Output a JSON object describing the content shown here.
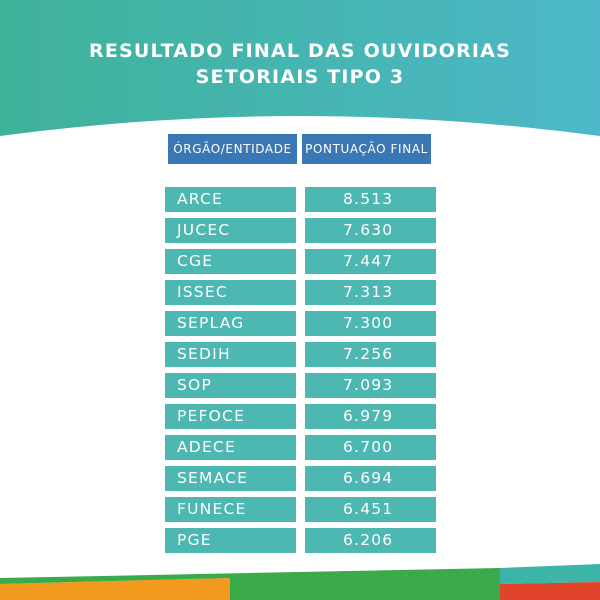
{
  "title": {
    "line1": "RESULTADO FINAL DAS OUVIDORIAS",
    "line2": "SETORIAIS  TIPO 3"
  },
  "table": {
    "headers": [
      "ÓRGÃO/ENTIDADE",
      "PONTUAÇÃO FINAL"
    ],
    "rows": [
      {
        "entity": "ARCE",
        "score": "8.513"
      },
      {
        "entity": "JUCEC",
        "score": "7.630"
      },
      {
        "entity": "CGE",
        "score": "7.447"
      },
      {
        "entity": "ISSEC",
        "score": "7.313"
      },
      {
        "entity": "SEPLAG",
        "score": "7.300"
      },
      {
        "entity": "SEDIH",
        "score": "7.256"
      },
      {
        "entity": "SOP",
        "score": "7.093"
      },
      {
        "entity": "PEFOCE",
        "score": "6.979"
      },
      {
        "entity": "ADECE",
        "score": "6.700"
      },
      {
        "entity": "SEMACE",
        "score": "6.694"
      },
      {
        "entity": "FUNECE",
        "score": "6.451"
      },
      {
        "entity": "PGE",
        "score": "6.206"
      }
    ]
  },
  "colors": {
    "header_gradient_start": "#3fb29a",
    "header_gradient_end": "#4cb8c8",
    "column_header": "#3a77b5",
    "cell": "#4db7b1",
    "footer_orange": "#f39a1e",
    "footer_green": "#3aaa4a",
    "footer_teal": "#3cb5a8",
    "footer_red": "#e0452b"
  }
}
